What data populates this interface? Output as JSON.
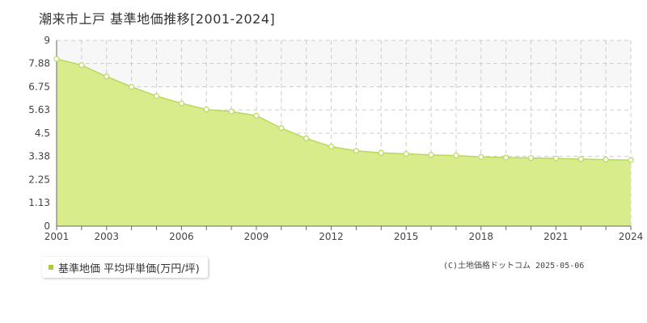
{
  "title": "潮来市上戸  基準地価推移[2001-2024]",
  "legend_label": "基準地価 平均坪単価(万円/坪)",
  "copyright": "(C)土地価格ドットコム 2025-05-06",
  "colors": {
    "area_fill": "#d9ec8c",
    "line": "#b8d95a",
    "point_fill": "#ffffff",
    "grid": "#cccccc",
    "legend_swatch": "#a8cc3c",
    "band": "#f7f7f7"
  },
  "chart_data": {
    "type": "area",
    "title": "潮来市上戸  基準地価推移[2001-2024]",
    "xlabel": "",
    "ylabel": "",
    "ylim": [
      0,
      9
    ],
    "xlim": [
      2001,
      2024
    ],
    "grid": true,
    "legend_position": "bottom-left",
    "y_ticks": [
      "0",
      "1.13",
      "2.25",
      "3.38",
      "4.5",
      "5.63",
      "6.75",
      "7.88",
      "9"
    ],
    "x_tick_labels": [
      {
        "year": 2001,
        "label": "2001"
      },
      {
        "year": 2003,
        "label": "2003"
      },
      {
        "year": 2006,
        "label": "2006"
      },
      {
        "year": 2009,
        "label": "2009"
      },
      {
        "year": 2012,
        "label": "2012"
      },
      {
        "year": 2015,
        "label": "2015"
      },
      {
        "year": 2018,
        "label": "2018"
      },
      {
        "year": 2021,
        "label": "2021"
      },
      {
        "year": 2024,
        "label": "2024"
      }
    ],
    "series": [
      {
        "name": "基準地価 平均坪単価(万円/坪)",
        "x": [
          2001,
          2002,
          2003,
          2004,
          2005,
          2006,
          2007,
          2008,
          2009,
          2010,
          2011,
          2012,
          2013,
          2014,
          2015,
          2016,
          2017,
          2018,
          2019,
          2020,
          2021,
          2022,
          2023,
          2024
        ],
        "values": [
          8.1,
          7.8,
          7.25,
          6.75,
          6.3,
          5.95,
          5.65,
          5.55,
          5.35,
          4.75,
          4.25,
          3.85,
          3.65,
          3.55,
          3.5,
          3.45,
          3.42,
          3.35,
          3.32,
          3.3,
          3.28,
          3.25,
          3.22,
          3.2
        ]
      }
    ]
  }
}
